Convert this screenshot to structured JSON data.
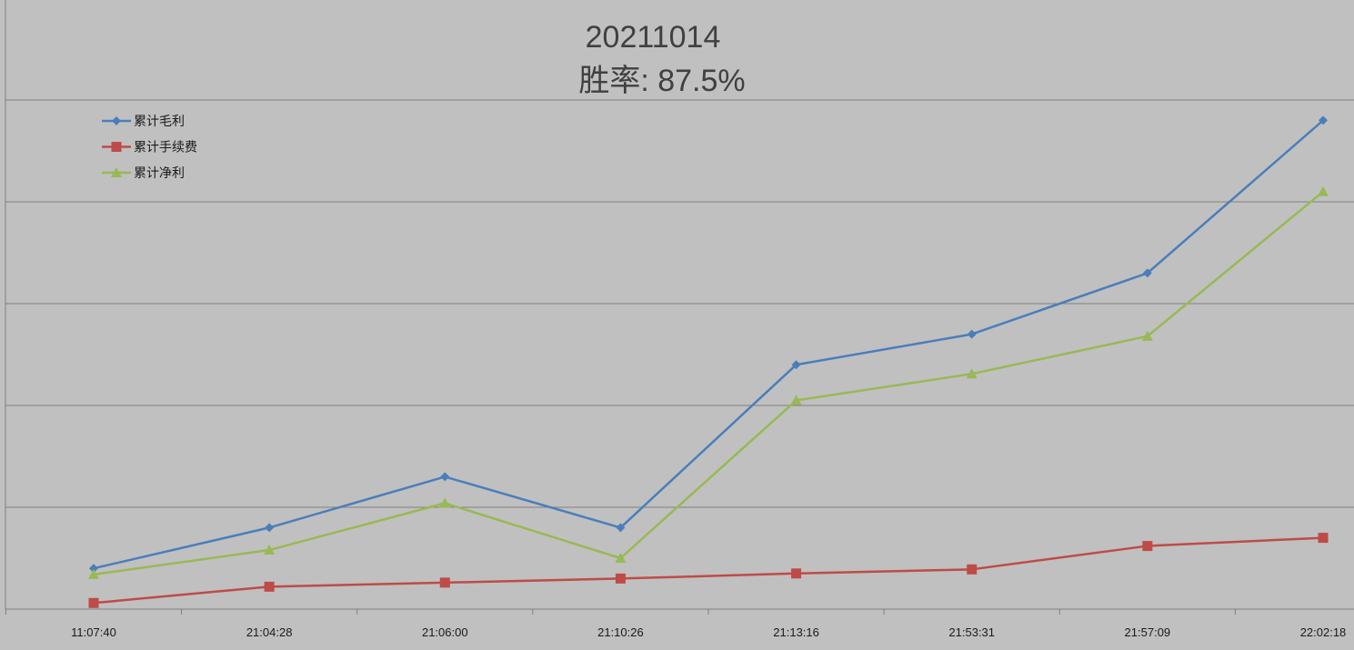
{
  "chart_data": {
    "type": "line",
    "title": "20211014",
    "subtitle": "胜率: 87.5%",
    "xlabel": "",
    "ylabel": "",
    "categories": [
      "11:07:40",
      "21:04:28",
      "21:06:00",
      "21:10:26",
      "21:13:16",
      "21:53:31",
      "21:57:09",
      "22:02:18"
    ],
    "ylim": [
      0,
      5
    ],
    "yticks_labeled": false,
    "grid": true,
    "legend_position": "top-left",
    "series": [
      {
        "name": "累计毛利",
        "color": "#4a7ebb",
        "marker": "diamond",
        "values": [
          0.4,
          0.8,
          1.3,
          0.8,
          2.4,
          2.7,
          3.3,
          4.8
        ]
      },
      {
        "name": "累计手续费",
        "color": "#be4b48",
        "marker": "square",
        "values": [
          0.06,
          0.22,
          0.26,
          0.3,
          0.35,
          0.39,
          0.62,
          0.7
        ]
      },
      {
        "name": "累计净利",
        "color": "#98b954",
        "marker": "triangle",
        "values": [
          0.34,
          0.58,
          1.04,
          0.5,
          2.05,
          2.31,
          2.68,
          4.1
        ]
      }
    ]
  }
}
